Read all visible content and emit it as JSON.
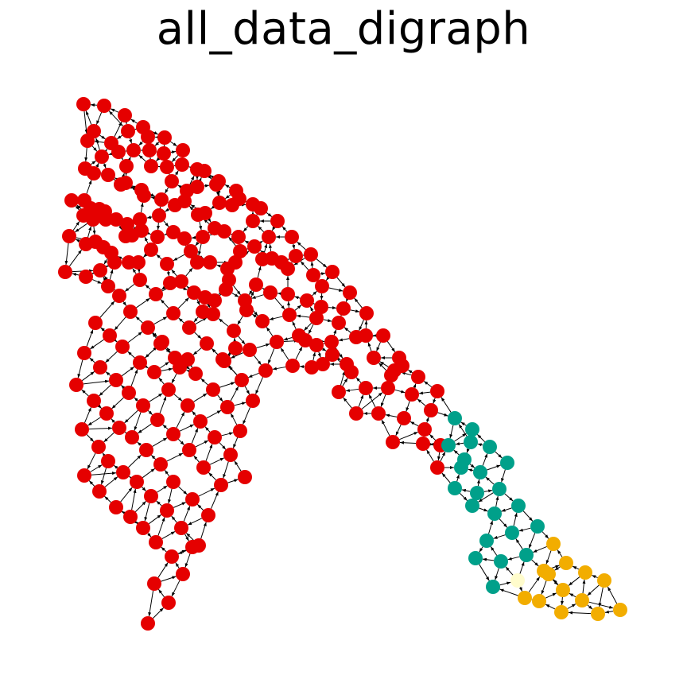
{
  "title": "all_data_digraph",
  "colors": {
    "red": "#e50000",
    "teal": "#00a08a",
    "orange": "#f2ad00",
    "cream": "#fffccc",
    "edge": "#000000"
  }
}
